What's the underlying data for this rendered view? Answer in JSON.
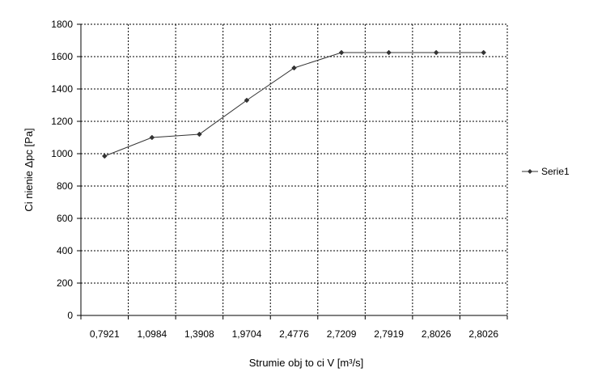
{
  "chart_data": {
    "type": "line",
    "categories": [
      "0,7921",
      "1,0984",
      "1,3908",
      "1,9704",
      "2,4776",
      "2,7209",
      "2,7919",
      "2,8026",
      "2,8026"
    ],
    "series": [
      {
        "name": "Serie1",
        "values": [
          985,
          1100,
          1120,
          1330,
          1530,
          1625,
          1625,
          1625,
          1625
        ],
        "color": "#333333"
      }
    ],
    "yticks": [
      "0",
      "200",
      "400",
      "600",
      "800",
      "1000",
      "1200",
      "1400",
      "1600",
      "1800"
    ],
    "ylim": [
      0,
      1800
    ],
    "ystep": 200,
    "xlabel": "Strumie   obj  to  ci V [m³/s]",
    "ylabel": "Ci nienie  Δpc [Pa]",
    "grid": true,
    "legend_position": "right"
  }
}
